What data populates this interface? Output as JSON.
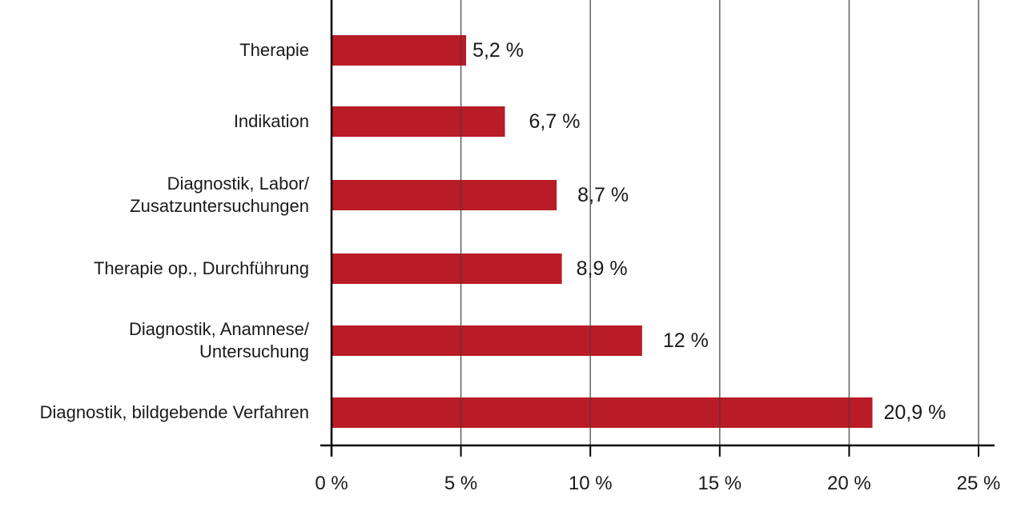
{
  "chart_data": {
    "type": "bar",
    "orientation": "horizontal",
    "categories": [
      [
        "Therapie"
      ],
      [
        "Indikation"
      ],
      [
        "Diagnostik, Labor/",
        "Zusatzuntersuchungen"
      ],
      [
        "Therapie op., Durchführung"
      ],
      [
        "Diagnostik, Anamnese/",
        "Untersuchung"
      ],
      [
        "Diagnostik, bildgebende Verfahren"
      ]
    ],
    "values": [
      5.2,
      6.7,
      8.7,
      8.9,
      12,
      20.9
    ],
    "value_labels": [
      "5,2 %",
      "6,7 %",
      "8,7 %",
      "8,9 %",
      "12 %",
      "20,9 %"
    ],
    "xlim": [
      0,
      25
    ],
    "x_ticks": [
      0,
      5,
      10,
      15,
      20,
      25
    ],
    "x_tick_labels": [
      "0 %",
      "5 %",
      "10 %",
      "15 %",
      "20 %",
      "25 %"
    ],
    "bar_color": "#B71C27",
    "grid": true,
    "title": "",
    "xlabel": "",
    "ylabel": ""
  }
}
